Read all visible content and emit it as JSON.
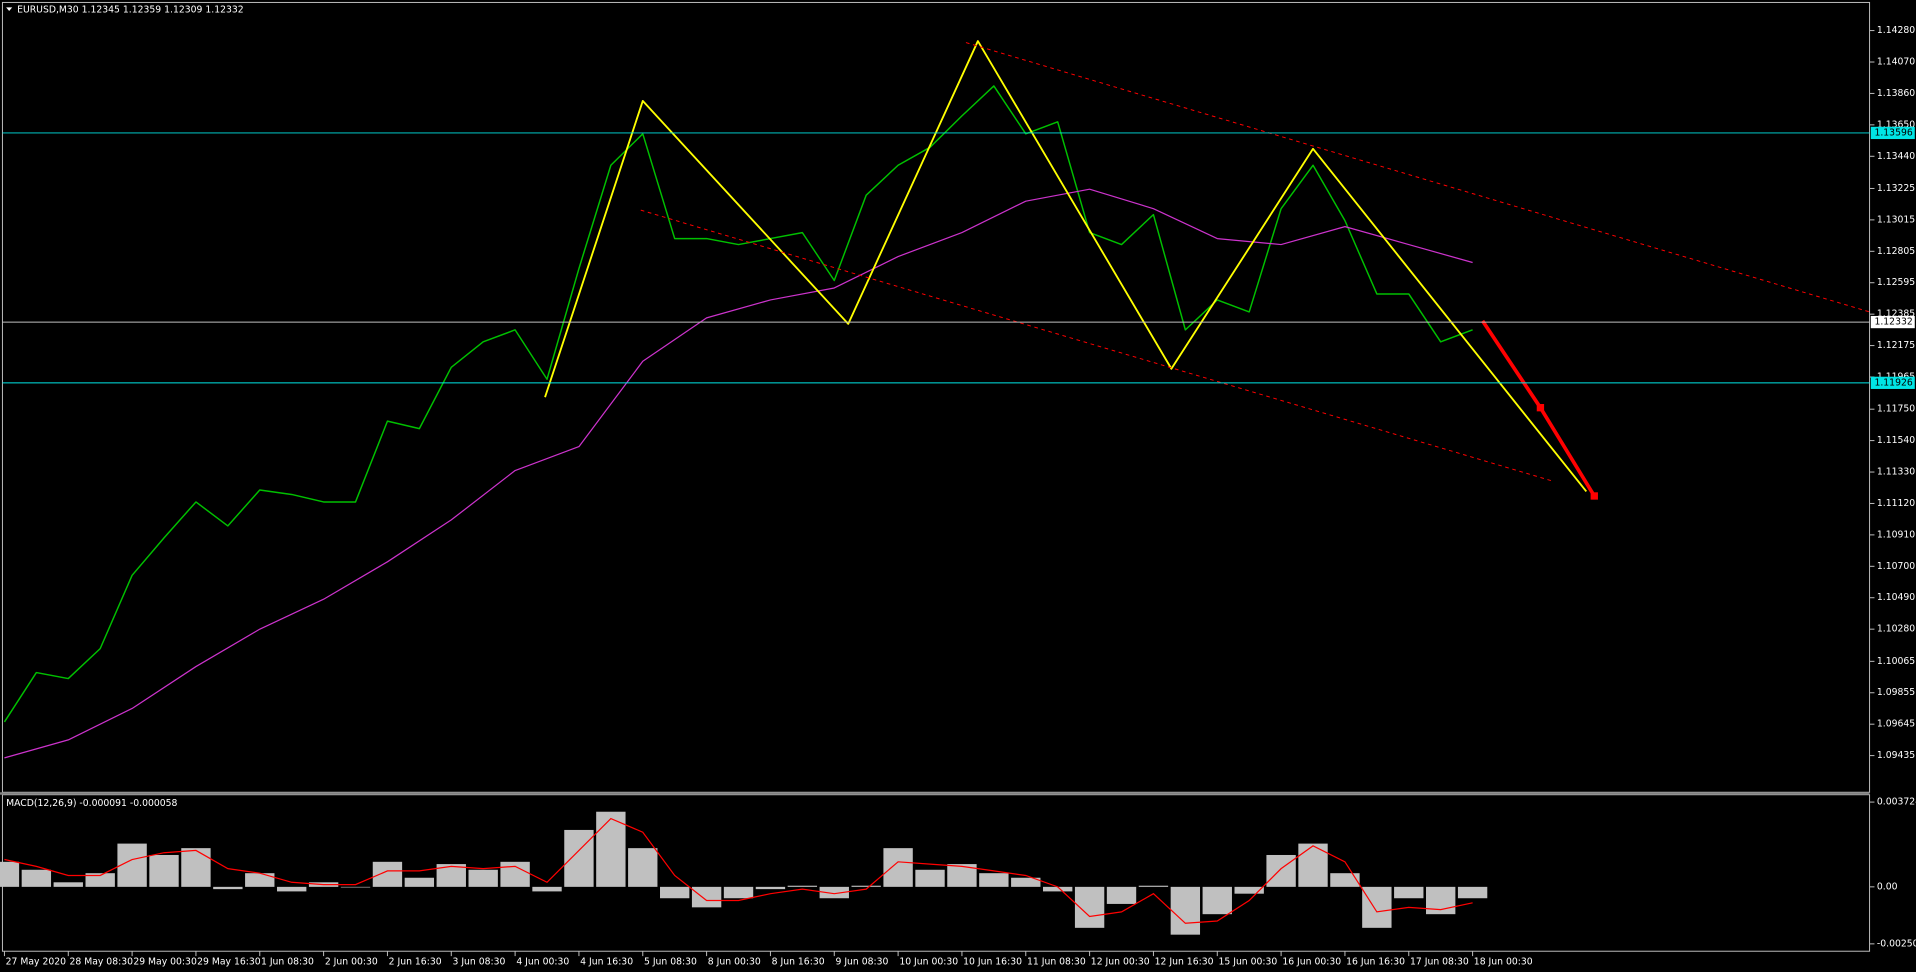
{
  "chart_data": [
    {
      "type": "line",
      "title": "EURUSD,M30  1.12345 1.12359 1.12309 1.12332",
      "xlim": [
        -1,
        935
      ],
      "ylim": [
        1.0919,
        1.14468
      ],
      "yticks": [
        {
          "value": 1.1428,
          "label": "1.14280"
        },
        {
          "value": 1.1407,
          "label": "1.14070"
        },
        {
          "value": 1.1386,
          "label": "1.13860"
        },
        {
          "value": 1.1365,
          "label": "1.13650"
        },
        {
          "value": 1.1344,
          "label": "1.13440"
        },
        1.13225,
        1.13015,
        1.12805,
        1.12595,
        1.12385,
        1.12175,
        1.11965,
        {
          "value": 1.1175,
          "label": "1.11750"
        },
        {
          "value": 1.1154,
          "label": "1.11540"
        },
        {
          "value": 1.1133,
          "label": "1.11330"
        },
        {
          "value": 1.1112,
          "label": "1.11120"
        },
        {
          "value": 1.1091,
          "label": "1.10910"
        },
        {
          "value": 1.107,
          "label": "1.10700"
        },
        {
          "value": 1.1049,
          "label": "1.10490"
        },
        {
          "value": 1.1028,
          "label": "1.10280"
        },
        1.10065,
        1.09855,
        1.09645,
        1.09435
      ],
      "hlines": [
        {
          "value": 1.13596,
          "color": "#00e5e5"
        },
        {
          "value": 1.12332,
          "color": "#c0c0c0"
        },
        {
          "value": 1.11926,
          "color": "#00e5e5"
        }
      ],
      "series": [
        {
          "color": "#00c000",
          "width": 1.2,
          "x": [
            0,
            16,
            32,
            48,
            64,
            80,
            96,
            112,
            128,
            144,
            160,
            176,
            192,
            208,
            224,
            240,
            256,
            272,
            288,
            304,
            320,
            336,
            352,
            368,
            384,
            400,
            416,
            432,
            448,
            464,
            480,
            496,
            512,
            528,
            544,
            560,
            576,
            592,
            608,
            624,
            640,
            656,
            672,
            688,
            704,
            720,
            736
          ],
          "values": [
            1.0966,
            1.0999,
            1.0995,
            1.1015,
            1.1064,
            1.1089,
            1.1113,
            1.1097,
            1.1121,
            1.1118,
            1.1113,
            1.1113,
            1.1167,
            1.1162,
            1.1203,
            1.122,
            1.1228,
            1.1195,
            1.1269,
            1.1338,
            1.1359,
            1.1289,
            1.1289,
            1.1285,
            1.1289,
            1.1293,
            1.1261,
            1.1318,
            1.1338,
            1.135,
            1.1371,
            1.1391,
            1.1359,
            1.1367,
            1.1293,
            1.1285,
            1.1305,
            1.1228,
            1.1248,
            1.124,
            1.1309,
            1.1338,
            1.1301,
            1.1252,
            1.1252,
            1.122,
            1.1228
          ]
        },
        {
          "color": "#cc33cc",
          "width": 1,
          "x": [
            0,
            32,
            64,
            96,
            128,
            160,
            192,
            224,
            256,
            288,
            320,
            352,
            384,
            416,
            448,
            480,
            512,
            544,
            576,
            608,
            640,
            672,
            704,
            736
          ],
          "values": [
            1.0942,
            1.0954,
            1.0975,
            1.1003,
            1.1028,
            1.1048,
            1.1073,
            1.1101,
            1.1134,
            1.115,
            1.1207,
            1.1236,
            1.1248,
            1.1256,
            1.1277,
            1.1293,
            1.1314,
            1.1322,
            1.1309,
            1.1289,
            1.1285,
            1.1297,
            1.1285,
            1.1273
          ]
        },
        {
          "color": "#ffff00",
          "width": 1.5,
          "x": [
            271,
            320,
            423,
            488,
            585,
            656,
            793
          ],
          "values": [
            1.1183,
            1.1381,
            1.1232,
            1.1421,
            1.1202,
            1.1349,
            1.112
          ]
        },
        {
          "color": "#ff0000",
          "width": 0.8,
          "dashed": true,
          "x": [
            482,
            935
          ],
          "values": [
            1.142,
            1.124
          ]
        },
        {
          "color": "#ff0000",
          "width": 0.8,
          "dashed": true,
          "x": [
            319,
            776
          ],
          "values": [
            1.1308,
            1.1127
          ]
        },
        {
          "color": "#ff0000",
          "width": 3,
          "x": [
            741,
            770,
            797
          ],
          "values": [
            1.1234,
            1.1176,
            1.1117
          ]
        }
      ]
    },
    {
      "type": "macd",
      "title": "MACD(12,26,9) -0.000091 -0.000058",
      "xlim": [
        -1,
        935
      ],
      "ylim": [
        -0.002827,
        0.004047
      ],
      "yticks": [
        0.003724,
        {
          "value": 0,
          "label": "0.00"
        },
        -0.002504
      ],
      "xticks": [
        {
          "value": 0,
          "label": "27 May 2020"
        },
        {
          "value": 32,
          "label": "28 May 08:30"
        },
        {
          "value": 64,
          "label": "29 May 00:30"
        },
        {
          "value": 96,
          "label": "29 May 16:30"
        },
        {
          "value": 128,
          "label": "1 Jun 08:30"
        },
        {
          "value": 160,
          "label": "2 Jun 00:30"
        },
        {
          "value": 192,
          "label": "2 Jun 16:30"
        },
        {
          "value": 224,
          "label": "3 Jun 08:30"
        },
        {
          "value": 256,
          "label": "4 Jun 00:30"
        },
        {
          "value": 288,
          "label": "4 Jun 16:30"
        },
        {
          "value": 320,
          "label": "5 Jun 08:30"
        },
        {
          "value": 352,
          "label": "8 Jun 00:30"
        },
        {
          "value": 384,
          "label": "8 Jun 16:30"
        },
        {
          "value": 416,
          "label": "9 Jun 08:30"
        },
        {
          "value": 448,
          "label": "10 Jun 00:30"
        },
        {
          "value": 480,
          "label": "10 Jun 16:30"
        },
        {
          "value": 512,
          "label": "11 Jun 08:30"
        },
        {
          "value": 544,
          "label": "12 Jun 00:30"
        },
        {
          "value": 576,
          "label": "12 Jun 16:30"
        },
        {
          "value": 608,
          "label": "15 Jun 00:30"
        },
        {
          "value": 640,
          "label": "16 Jun 00:30"
        },
        {
          "value": 672,
          "label": "16 Jun 16:30"
        },
        {
          "value": 704,
          "label": "17 Jun 08:30"
        },
        {
          "value": 736,
          "label": "18 Jun 00:30"
        }
      ],
      "x": [
        0,
        16,
        32,
        48,
        64,
        80,
        96,
        112,
        128,
        144,
        160,
        176,
        192,
        208,
        224,
        240,
        256,
        272,
        288,
        304,
        320,
        336,
        352,
        368,
        384,
        400,
        416,
        432,
        448,
        464,
        480,
        496,
        512,
        528,
        544,
        560,
        576,
        592,
        608,
        624,
        640,
        656,
        672,
        688,
        704,
        720,
        736
      ],
      "histogram": {
        "color": "#c0c0c0",
        "values": [
          0.0011,
          0.00075,
          0.0002,
          0.0006,
          0.0019,
          0.0014,
          0.0017,
          -0.0001,
          0.0006,
          -0.0002,
          0.0002,
          0,
          0.0011,
          0.0004,
          0.001,
          0.00075,
          0.0011,
          -0.0002,
          0.0025,
          0.0033,
          0.0017,
          -0.0005,
          -0.0009,
          -0.0005,
          -0.0001,
          5e-05,
          -0.0005,
          5e-05,
          0.0017,
          0.00075,
          0.001,
          0.0006,
          0.0004,
          -0.0002,
          -0.0018,
          -0.00075,
          5e-05,
          -0.0021,
          -0.0012,
          -0.0003,
          0.0014,
          0.0019,
          0.0006,
          -0.0018,
          -0.0005,
          -0.0012,
          -0.0005
        ]
      },
      "signal": {
        "color": "#ff0000",
        "values": [
          0.0012,
          0.0009,
          0.0005,
          0.0005,
          0.0012,
          0.0015,
          0.0016,
          0.0008,
          0.0006,
          0.0002,
          0.0001,
          0.0001,
          0.0007,
          0.0007,
          0.0009,
          0.0008,
          0.0009,
          0.0002,
          0.0016,
          0.003,
          0.0024,
          0.0005,
          -0.0006,
          -0.0006,
          -0.0003,
          -0.0001,
          -0.0003,
          -0.0001,
          0.0011,
          0.001,
          0.0009,
          0.0007,
          0.0005,
          0,
          -0.0013,
          -0.0011,
          -0.0003,
          -0.0016,
          -0.0015,
          -0.0006,
          0.0008,
          0.0018,
          0.0011,
          -0.0011,
          -0.0009,
          -0.001,
          -0.0007
        ]
      }
    }
  ]
}
